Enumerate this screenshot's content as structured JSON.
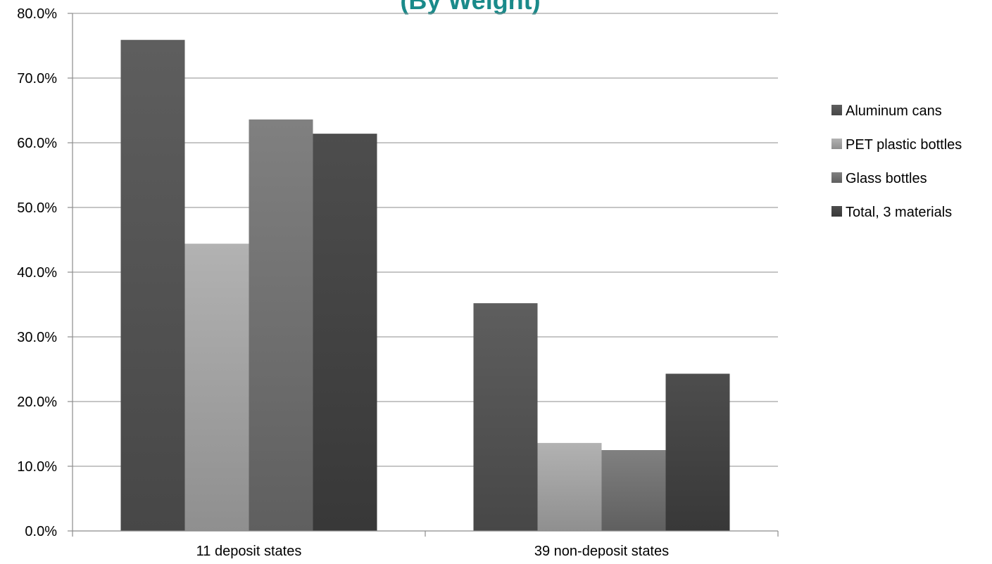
{
  "chart_data": {
    "type": "bar",
    "title": "(By Weight)",
    "categories": [
      "11 deposit states",
      "39 non-deposit states"
    ],
    "series": [
      {
        "name": "Aluminum cans",
        "values": [
          75.9,
          35.2
        ],
        "color": "#555555"
      },
      {
        "name": "PET plastic bottles",
        "values": [
          44.4,
          13.6
        ],
        "color": "#a6a6a6"
      },
      {
        "name": "Glass bottles",
        "values": [
          63.6,
          12.5
        ],
        "color": "#777777"
      },
      {
        "name": "Total, 3 materials",
        "values": [
          61.4,
          24.3
        ],
        "color": "#444444"
      }
    ],
    "ylim": [
      0,
      80
    ],
    "yticks": [
      "0.0%",
      "10.0%",
      "20.0%",
      "30.0%",
      "40.0%",
      "50.0%",
      "60.0%",
      "70.0%",
      "80.0%"
    ],
    "grid": true,
    "legend_position": "right"
  }
}
